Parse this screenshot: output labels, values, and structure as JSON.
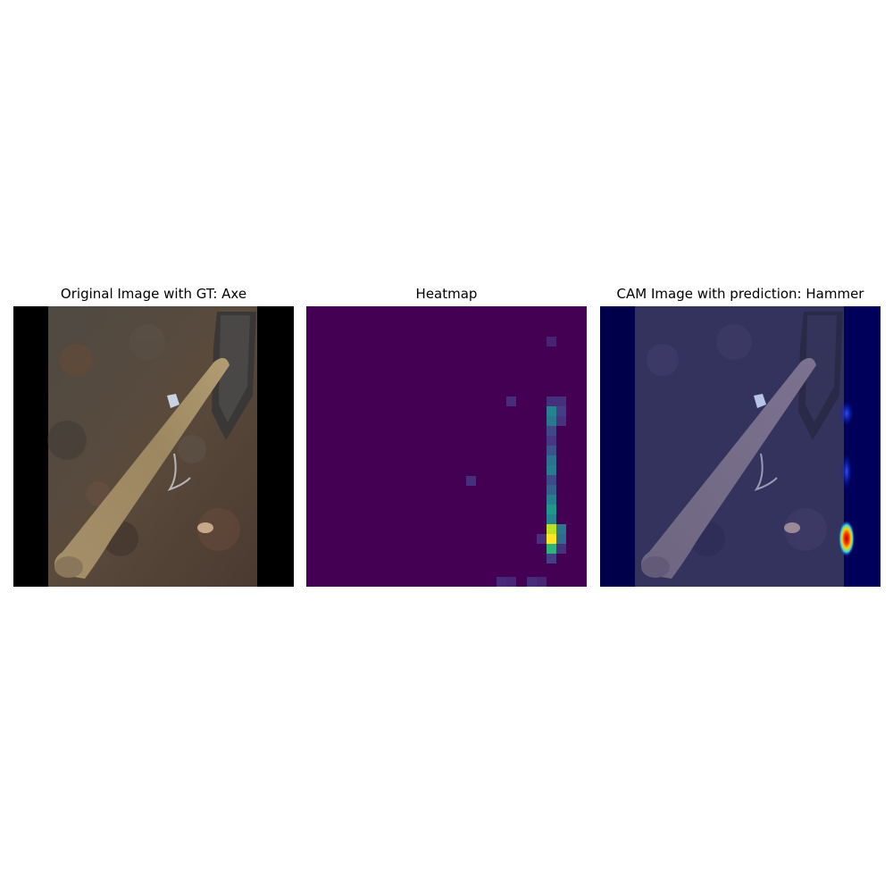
{
  "panels": [
    {
      "title": "Original Image with GT: Axe"
    },
    {
      "title": "Heatmap"
    },
    {
      "title": "CAM Image with prediction: Hammer"
    }
  ],
  "colors": {
    "heatmap_low": "#440154",
    "heatmap_mid": "#21918c",
    "heatmap_high": "#fde725",
    "cam_base": "#00005a",
    "cam_hot": "#ff0000"
  }
}
